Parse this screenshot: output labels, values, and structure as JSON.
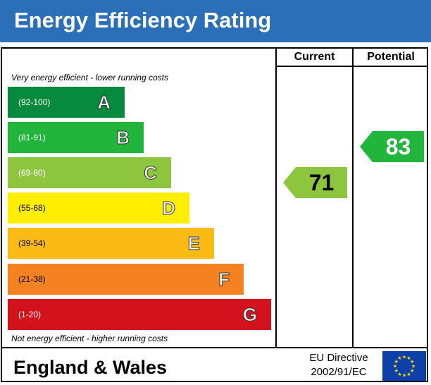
{
  "title": "Energy Efficiency Rating",
  "columns": {
    "current": "Current",
    "potential": "Potential"
  },
  "top_note": "Very energy efficient - lower running costs",
  "bottom_note": "Not energy efficient - higher running costs",
  "region": "England & Wales",
  "directive": {
    "line1": "EU Directive",
    "line2": "2002/91/EC"
  },
  "chart_data": {
    "type": "bar",
    "categories": [
      "A",
      "B",
      "C",
      "D",
      "E",
      "F",
      "G"
    ],
    "ranges": [
      "(92-100)",
      "(81-91)",
      "(69-80)",
      "(55-68)",
      "(39-54)",
      "(21-38)",
      "(1-20)"
    ],
    "band_colors": [
      "#078a3d",
      "#21b53b",
      "#8dc53f",
      "#ffee00",
      "#fbbb14",
      "#f58220",
      "#d2131d"
    ],
    "current": {
      "value": 71,
      "band": "C",
      "color": "#8dc53f"
    },
    "potential": {
      "value": 83,
      "band": "B",
      "color": "#21b53b"
    }
  }
}
